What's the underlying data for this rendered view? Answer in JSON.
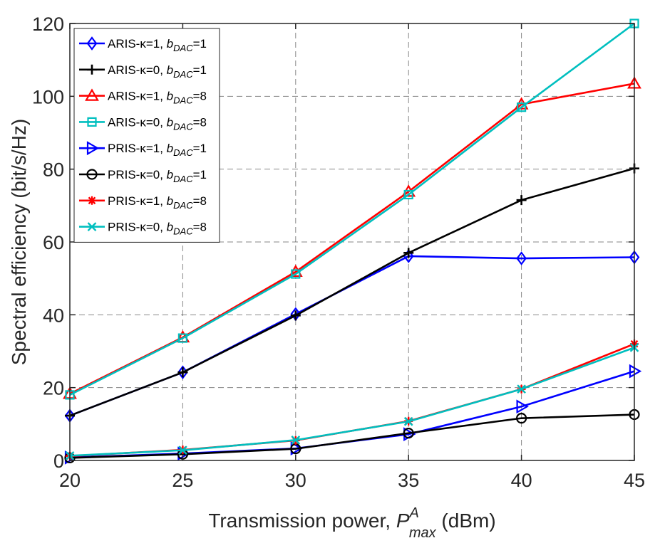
{
  "chart_data": {
    "type": "line",
    "title": "",
    "xlabel": "Transmission power, P^A_max (dBm)",
    "xlabel_parts": {
      "prefix": "Transmission power, ",
      "symbol": "P",
      "sup": "A",
      "sub": "max",
      "suffix": " (dBm)"
    },
    "ylabel": "Spectral efficiency (bit/s/Hz)",
    "xlim": [
      20,
      45
    ],
    "ylim": [
      0,
      120
    ],
    "xticks": [
      20,
      25,
      30,
      35,
      40,
      45
    ],
    "yticks": [
      0,
      20,
      40,
      60,
      80,
      100,
      120
    ],
    "grid": true,
    "legend_location": "top-left",
    "x": [
      20,
      25,
      30,
      35,
      40,
      45
    ],
    "series": [
      {
        "name": "ARIS-κ=1, b_DAC=1",
        "label_main": "ARIS-κ=1, ",
        "label_base": "b",
        "label_sub": "DAC",
        "label_tail": "=1",
        "color": "#0000ff",
        "marker": "diamond",
        "values": [
          12.3,
          24.2,
          40.2,
          56.1,
          55.5,
          55.8
        ]
      },
      {
        "name": "ARIS-κ=0, b_DAC=1",
        "label_main": "ARIS-κ=0, ",
        "label_base": "b",
        "label_sub": "DAC",
        "label_tail": "=1",
        "color": "#000000",
        "marker": "plus",
        "values": [
          12.3,
          24.2,
          39.8,
          57.0,
          71.5,
          80.2
        ]
      },
      {
        "name": "ARIS-κ=1, b_DAC=8",
        "label_main": "ARIS-κ=1, ",
        "label_base": "b",
        "label_sub": "DAC",
        "label_tail": "=8",
        "color": "#ff0000",
        "marker": "triangle",
        "values": [
          18.3,
          33.8,
          51.8,
          73.8,
          97.8,
          103.5
        ]
      },
      {
        "name": "ARIS-κ=0, b_DAC=8",
        "label_main": "ARIS-κ=0, ",
        "label_base": "b",
        "label_sub": "DAC",
        "label_tail": "=8",
        "color": "#00bfbf",
        "marker": "square",
        "values": [
          18.0,
          33.6,
          51.2,
          73.0,
          97.0,
          120.0
        ]
      },
      {
        "name": "PRIS-κ=1, b_DAC=1",
        "label_main": "PRIS-κ=1, ",
        "label_base": "b",
        "label_sub": "DAC",
        "label_tail": "=1",
        "color": "#0000ff",
        "marker": "triangle-right",
        "values": [
          0.8,
          1.9,
          3.3,
          7.2,
          14.8,
          24.5
        ]
      },
      {
        "name": "PRIS-κ=0, b_DAC=1",
        "label_main": "PRIS-κ=0, ",
        "label_base": "b",
        "label_sub": "DAC",
        "label_tail": "=1",
        "color": "#000000",
        "marker": "circle",
        "values": [
          0.7,
          1.7,
          3.2,
          7.5,
          11.6,
          12.6
        ]
      },
      {
        "name": "PRIS-κ=1, b_DAC=8",
        "label_main": "PRIS-κ=1, ",
        "label_base": "b",
        "label_sub": "DAC",
        "label_tail": "=8",
        "color": "#ff0000",
        "marker": "asterisk",
        "values": [
          1.2,
          2.9,
          5.5,
          10.8,
          19.6,
          32.0
        ]
      },
      {
        "name": "PRIS-κ=0, b_DAC=8",
        "label_main": "PRIS-κ=0, ",
        "label_base": "b",
        "label_sub": "DAC",
        "label_tail": "=8",
        "color": "#00bfbf",
        "marker": "cross",
        "values": [
          1.3,
          2.8,
          5.6,
          10.7,
          19.6,
          31.0
        ]
      }
    ]
  }
}
